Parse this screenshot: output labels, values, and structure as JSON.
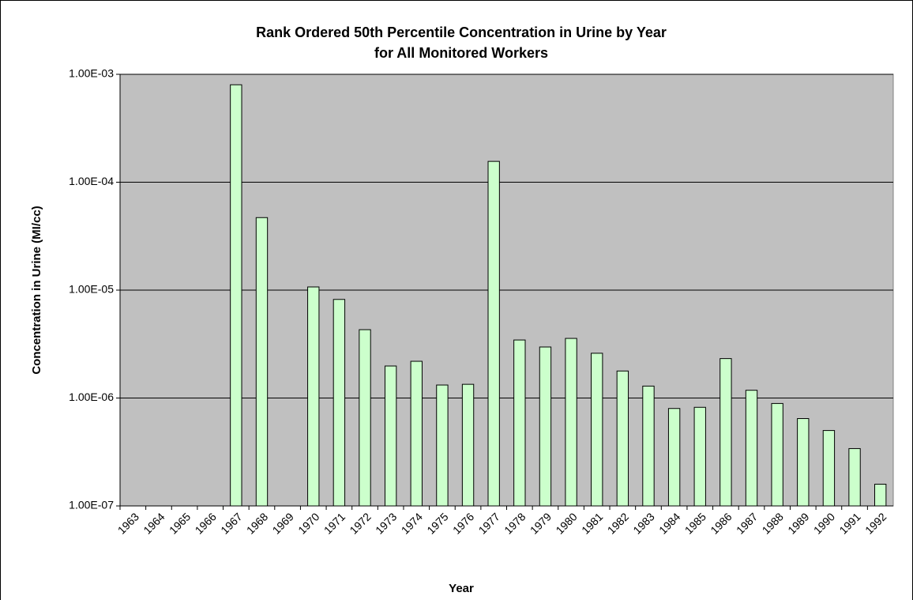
{
  "chart_data": {
    "type": "bar",
    "title": [
      "Rank Ordered 50th Percentile Concentration in Urine by Year",
      "for All Monitored Workers"
    ],
    "x_label": "Year",
    "y_label": "Concentration in Urine (MI/cc)",
    "categories": [
      "1963",
      "1964",
      "1965",
      "1966",
      "1967",
      "1968",
      "1969",
      "1970",
      "1971",
      "1972",
      "1973",
      "1974",
      "1975",
      "1976",
      "1977",
      "1978",
      "1979",
      "1980",
      "1981",
      "1982",
      "1983",
      "1984",
      "1985",
      "1986",
      "1987",
      "1988",
      "1989",
      "1990",
      "1991",
      "1992"
    ],
    "values": [
      null,
      null,
      null,
      null,
      0.0008,
      4.7e-05,
      null,
      1.07e-05,
      8.2e-06,
      4.3e-06,
      1.98e-06,
      2.19e-06,
      1.32e-06,
      1.34e-06,
      0.000156,
      3.45e-06,
      2.97e-06,
      3.57e-06,
      2.6e-06,
      1.78e-06,
      1.29e-06,
      8e-07,
      8.2e-07,
      2.32e-06,
      1.18e-06,
      8.9e-07,
      6.45e-07,
      5e-07,
      3.4e-07,
      1.59e-07
    ],
    "color": "#ccffcc",
    "log_scale": true,
    "ylim": [
      1e-07,
      0.001
    ],
    "yticks": [
      {
        "value": 1e-07,
        "label": "1.00E-07"
      },
      {
        "value": 1e-06,
        "label": "1.00E-06"
      },
      {
        "value": 1e-05,
        "label": "1.00E-05"
      },
      {
        "value": 0.0001,
        "label": "1.00E-04"
      },
      {
        "value": 0.001,
        "label": "1.00E-03"
      }
    ],
    "grid": true
  }
}
